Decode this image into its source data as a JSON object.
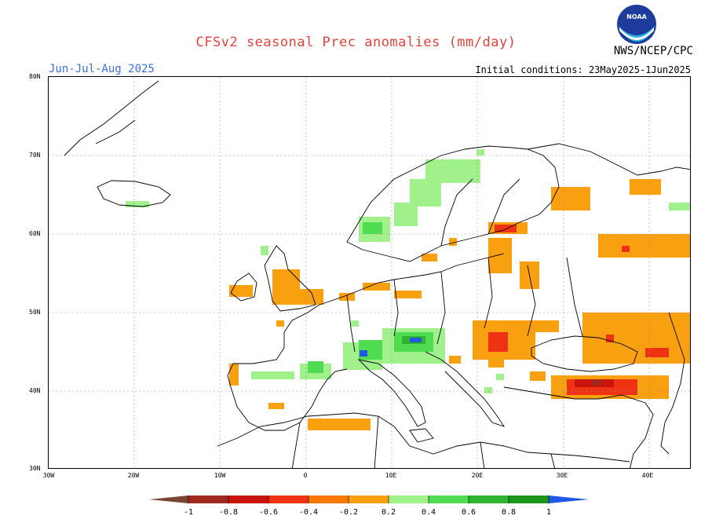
{
  "title": "CFSv2 seasonal Prec anomalies (mm/day)",
  "season": "Jun-Jul-Aug 2025",
  "initial_conditions": "Initial conditions: 23May2025-1Jun2025",
  "organization": "NWS/NCEP/CPC",
  "logo_text": "NOAA",
  "lat_labels": [
    "80N",
    "70N",
    "60N",
    "50N",
    "40N",
    "30N"
  ],
  "lon_labels": [
    "30W",
    "20W",
    "10W",
    "0",
    "10E",
    "20E",
    "30E",
    "40E"
  ],
  "legend": {
    "labels": [
      "-1",
      "-0.8",
      "-0.6",
      "-0.4",
      "-0.2",
      "0.2",
      "0.4",
      "0.6",
      "0.8",
      "1"
    ],
    "colors": [
      "#a0281e",
      "#c8140a",
      "#f03214",
      "#f87800",
      "#f8a010",
      "#a0f08c",
      "#50dc50",
      "#30b430",
      "#1e961e",
      "#1e5ae6"
    ]
  }
}
